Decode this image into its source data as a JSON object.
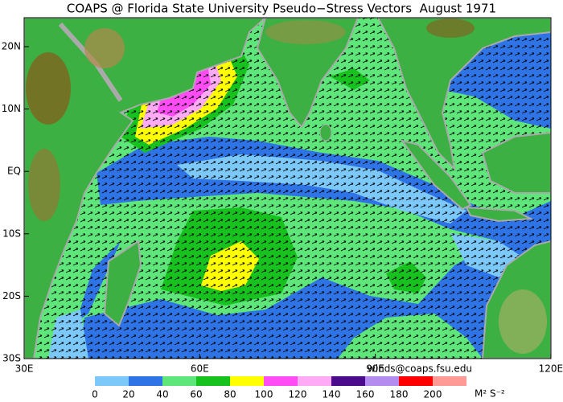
{
  "header": {
    "title": "COAPS @ Florida State University Pseudo−Stress Vectors  August 1971"
  },
  "map": {
    "lat_labels": [
      "20N",
      "10N",
      "EQ",
      "10S",
      "20S",
      "30S"
    ],
    "lon_labels": [
      "30E",
      "60E",
      "90E",
      "120E"
    ]
  },
  "credit": "winds@coaps.fsu.edu",
  "colorbar": {
    "labels": [
      0,
      20,
      40,
      60,
      80,
      100,
      120,
      140,
      160,
      180,
      200
    ],
    "colors": [
      "#7cc8f8",
      "#2f74e6",
      "#5fe67a",
      "#17c21f",
      "#ffff00",
      "#ff4cf5",
      "#ffaaf5",
      "#4b0c8c",
      "#b48cf0",
      "#ff0000",
      "#ff9a96"
    ],
    "unit": "M² S⁻²"
  }
}
